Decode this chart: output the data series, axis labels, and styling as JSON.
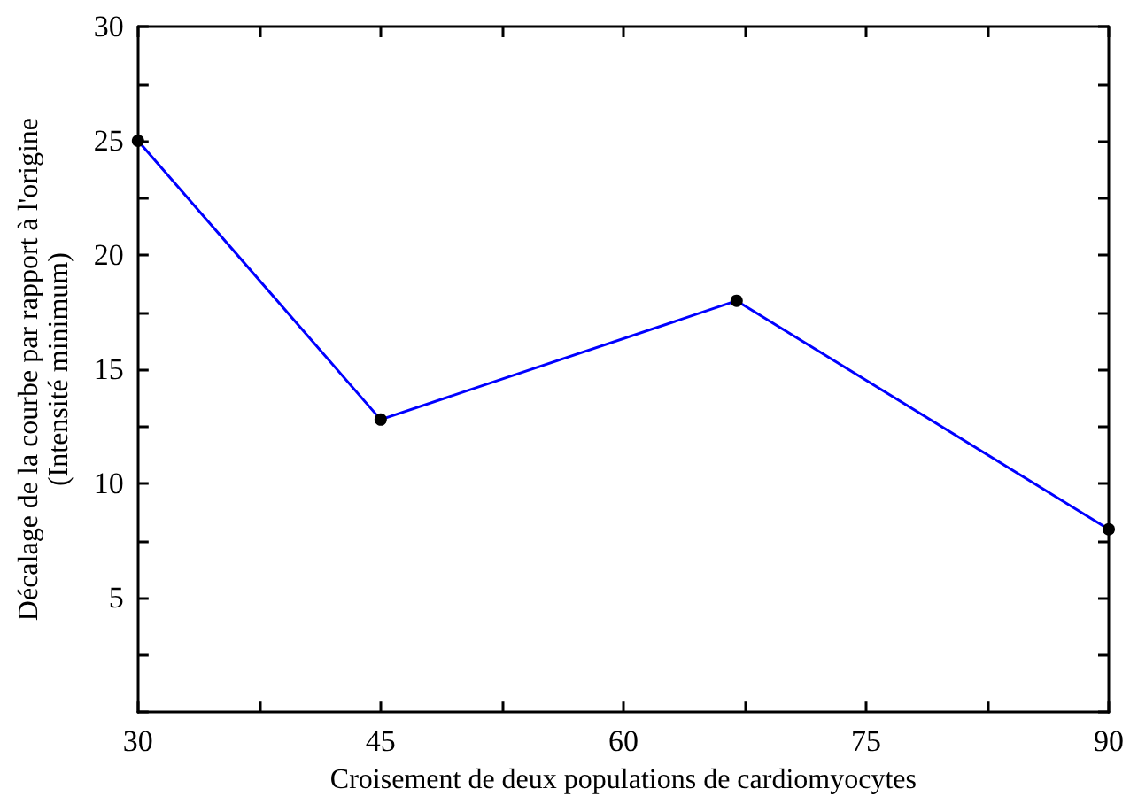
{
  "chart_data": {
    "type": "line",
    "xlabel": "Croisement de deux populations de cardiomyocytes",
    "ylabel": "Décalage de la courbe par rapport à l'origine\n(Intensité minimum)",
    "x": [
      30,
      45,
      67,
      90
    ],
    "series": [
      {
        "color": "#0000ff",
        "values": [
          25,
          12.8,
          18,
          8
        ]
      }
    ],
    "xlim": [
      30,
      90
    ],
    "xticks": [
      30,
      {
        "value": 37.5,
        "label": null
      },
      45,
      {
        "value": 52.5,
        "label": null
      },
      60,
      {
        "value": 67.5,
        "label": null
      },
      75,
      {
        "value": 82.5,
        "label": null
      },
      90
    ],
    "ylim": [
      0,
      30
    ],
    "yticks": [
      {
        "value": 0,
        "label": null
      },
      {
        "value": 2.5,
        "label": null
      },
      5,
      {
        "value": 7.5,
        "label": null
      },
      10,
      {
        "value": 12.5,
        "label": null
      },
      15,
      {
        "value": 17.5,
        "label": null
      },
      20,
      {
        "value": 22.5,
        "label": null
      },
      25,
      {
        "value": 27.5,
        "label": null
      },
      30
    ],
    "marker": "circle",
    "line_style": "solid"
  }
}
